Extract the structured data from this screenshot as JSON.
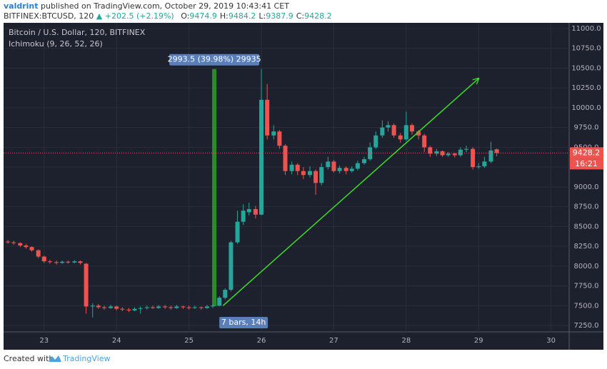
{
  "header": {
    "author": "valdrint",
    "published": "published on TradingView.com, October 29, 2019 10:43:41 CET",
    "symbol": "BITFINEX:BTCUSD, 120",
    "change": "+202.5 (+2.19%)",
    "quote": [
      {
        "label": "O:",
        "value": "9474.9"
      },
      {
        "label": "H:",
        "value": "9484.2"
      },
      {
        "label": "L:",
        "value": "9387.9"
      },
      {
        "label": "C:",
        "value": "9428.2"
      }
    ]
  },
  "footer": {
    "created": "Created with",
    "brand": "TradingView"
  },
  "chart_data": {
    "type": "candlestick",
    "title": "Bitcoin / U.S. Dollar, 120, BITFINEX",
    "indicator": "Ichimoku (9, 26, 52, 26)",
    "up_color": "#26a69a",
    "down_color": "#ef5350",
    "grid": true,
    "x": [
      22.5,
      22.58,
      22.67,
      22.75,
      22.83,
      22.92,
      23,
      23.08,
      23.17,
      23.25,
      23.33,
      23.42,
      23.5,
      23.58,
      23.67,
      23.75,
      23.83,
      23.92,
      24,
      24.08,
      24.17,
      24.25,
      24.33,
      24.42,
      24.5,
      24.58,
      24.67,
      24.75,
      24.83,
      24.92,
      25,
      25.08,
      25.17,
      25.25,
      25.33,
      25.42,
      25.5,
      25.58,
      25.67,
      25.75,
      25.83,
      25.92,
      26,
      26.08,
      26.17,
      26.25,
      26.33,
      26.42,
      26.5,
      26.58,
      26.67,
      26.75,
      26.83,
      26.92,
      27,
      27.08,
      27.17,
      27.25,
      27.33,
      27.42,
      27.5,
      27.58,
      27.67,
      27.75,
      27.83,
      27.92,
      28,
      28.08,
      28.17,
      28.25,
      28.33,
      28.42,
      28.5,
      28.58,
      28.67,
      28.75,
      28.83,
      28.92,
      29,
      29.08,
      29.17,
      29.25
    ],
    "open": [
      8310,
      8300,
      8290,
      8260,
      8240,
      8200,
      8120,
      8060,
      8050,
      8040,
      8055,
      8045,
      8060,
      8030,
      7490,
      7500,
      7480,
      7470,
      7490,
      7460,
      7450,
      7440,
      7460,
      7470,
      7480,
      7470,
      7490,
      7480,
      7470,
      7490,
      7480,
      7470,
      7480,
      7470,
      7490,
      7500,
      7600,
      7700,
      8300,
      8560,
      8680,
      8720,
      8650,
      10100,
      9650,
      9700,
      9520,
      9200,
      9280,
      9200,
      9150,
      9200,
      9050,
      9250,
      9320,
      9200,
      9240,
      9200,
      9230,
      9300,
      9350,
      9500,
      9650,
      9750,
      9780,
      9650,
      9600,
      9780,
      9700,
      9650,
      9500,
      9420,
      9450,
      9400,
      9420,
      9400,
      9470,
      9480,
      9250,
      9260,
      9320,
      9474.9
    ],
    "high": [
      8330,
      8320,
      8300,
      8280,
      8250,
      8210,
      8130,
      8080,
      8070,
      8070,
      8070,
      8075,
      8070,
      8040,
      7530,
      7520,
      7500,
      7510,
      7500,
      7480,
      7470,
      7480,
      7490,
      7500,
      7500,
      7510,
      7510,
      7500,
      7510,
      7500,
      7500,
      7500,
      7490,
      7510,
      7520,
      7620,
      7720,
      8320,
      8700,
      8780,
      8800,
      8760,
      10490,
      10300,
      9780,
      9720,
      9540,
      9320,
      9300,
      9250,
      9260,
      9220,
      9300,
      9380,
      9340,
      9270,
      9260,
      9260,
      9330,
      9380,
      9560,
      9700,
      9840,
      9830,
      9800,
      9680,
      9950,
      9800,
      9720,
      9670,
      9520,
      9480,
      9460,
      9440,
      9430,
      9500,
      9520,
      9500,
      9300,
      9380,
      9570,
      9484.2
    ],
    "low": [
      8280,
      8270,
      8240,
      8220,
      8180,
      8100,
      8040,
      8030,
      8020,
      8030,
      8030,
      8035,
      8020,
      7400,
      7350,
      7460,
      7450,
      7460,
      7440,
      7430,
      7420,
      7430,
      7400,
      7450,
      7460,
      7460,
      7460,
      7450,
      7460,
      7460,
      7450,
      7460,
      7450,
      7460,
      7470,
      7490,
      7580,
      7680,
      8280,
      8520,
      8640,
      8600,
      8640,
      9600,
      9600,
      9480,
      9150,
      9160,
      9150,
      9100,
      9120,
      8900,
      9020,
      9220,
      9180,
      9170,
      9160,
      9180,
      9210,
      9280,
      9330,
      9480,
      9620,
      9700,
      9620,
      9560,
      9580,
      9660,
      9600,
      9440,
      9380,
      9390,
      9380,
      9380,
      9370,
      9380,
      9440,
      9220,
      9230,
      9240,
      9300,
      9387.9
    ],
    "close": [
      8300,
      8290,
      8260,
      8240,
      8200,
      8120,
      8060,
      8050,
      8040,
      8055,
      8045,
      8060,
      8040,
      7490,
      7500,
      7480,
      7470,
      7490,
      7460,
      7450,
      7440,
      7460,
      7470,
      7480,
      7470,
      7490,
      7480,
      7470,
      7490,
      7480,
      7470,
      7480,
      7470,
      7490,
      7500,
      7600,
      7700,
      8300,
      8560,
      8700,
      8720,
      8650,
      10100,
      9650,
      9700,
      9520,
      9200,
      9280,
      9200,
      9150,
      9200,
      9050,
      9250,
      9320,
      9200,
      9240,
      9200,
      9230,
      9300,
      9350,
      9500,
      9650,
      9750,
      9780,
      9650,
      9600,
      9780,
      9700,
      9650,
      9500,
      9420,
      9450,
      9400,
      9420,
      9400,
      9470,
      9480,
      9250,
      9260,
      9320,
      9460,
      9428.2
    ],
    "xlim": [
      22.44,
      30.25
    ],
    "xticks": [
      23,
      24,
      25,
      26,
      27,
      28,
      29,
      30
    ],
    "ylim": [
      7169,
      11090
    ],
    "yticks": [
      {
        "value": 7250,
        "label": "7250.0"
      },
      {
        "value": 7500,
        "label": "7500.0"
      },
      {
        "value": 7750,
        "label": "7750.0"
      },
      {
        "value": 8000,
        "label": "8000.0"
      },
      {
        "value": 8250,
        "label": "8250.0"
      },
      {
        "value": 8500,
        "label": "8500.0"
      },
      {
        "value": 8750,
        "label": "8750.0"
      },
      {
        "value": 9000,
        "label": "9000.0"
      },
      {
        "value": 9250,
        "label": "9250.0"
      },
      {
        "value": 9500,
        "label": "9500.0"
      },
      {
        "value": 9750,
        "label": "9750.0"
      },
      {
        "value": 10000,
        "label": "10000.0"
      },
      {
        "value": 10250,
        "label": "10250.0"
      },
      {
        "value": 10500,
        "label": "10500.0"
      },
      {
        "value": 10750,
        "label": "10750.0"
      },
      {
        "value": 11000,
        "label": "11000.0"
      }
    ],
    "last_price": 9428.2,
    "countdown": "16:21",
    "measure": {
      "x": [
        25.32,
        25.38
      ],
      "y": [
        7495,
        10488.5
      ],
      "label": "2993.5 (39.98%) 29935",
      "bars_label": "7 bars, 14h"
    },
    "trend_line": {
      "x": [
        25.47,
        29.0
      ],
      "y": [
        7500,
        10370
      ],
      "color": "#3ddc27"
    }
  }
}
